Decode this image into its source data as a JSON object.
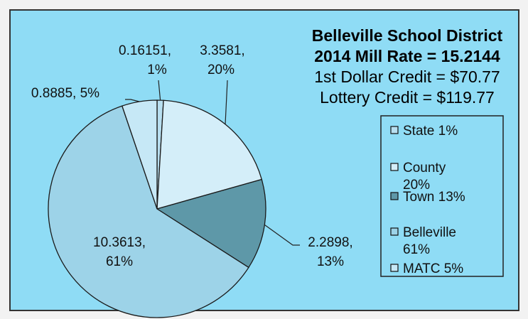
{
  "chart_data": {
    "type": "pie",
    "title": "Belleville School District",
    "title_line2": "2014 Mill Rate = 15.2144",
    "subtitle_lines": [
      "1st Dollar Credit = $70.77",
      "Lottery Credit = $119.77"
    ],
    "slices": [
      {
        "name": "State",
        "value": 0.16151,
        "percent": "1%",
        "color": "#b8dff0",
        "label_lines": [
          "0.16151,",
          "1%"
        ],
        "legend": "State 1%"
      },
      {
        "name": "County",
        "value": 3.3581,
        "percent": "20%",
        "color": "#d4eef9",
        "label_lines": [
          "3.3581,",
          "20%"
        ],
        "legend": "County 20%"
      },
      {
        "name": "Town",
        "value": 2.2898,
        "percent": "13%",
        "color": "#5e98a8",
        "label_lines": [
          "2.2898,",
          "13%"
        ],
        "legend": "Town 13%"
      },
      {
        "name": "Belleville",
        "value": 10.3613,
        "percent": "61%",
        "color": "#9dd3e8",
        "label_lines": [
          "10.3613,",
          "61%"
        ],
        "legend": "Belleville 61%"
      },
      {
        "name": "MATC",
        "value": 0.8885,
        "percent": "5%",
        "color": "#c6e8f6",
        "label_lines": [
          "0.8885, 5%"
        ],
        "legend": "MATC 5%"
      }
    ],
    "legend_position": "right",
    "background_color": "#8fdcf5",
    "border_color": "#333333"
  }
}
